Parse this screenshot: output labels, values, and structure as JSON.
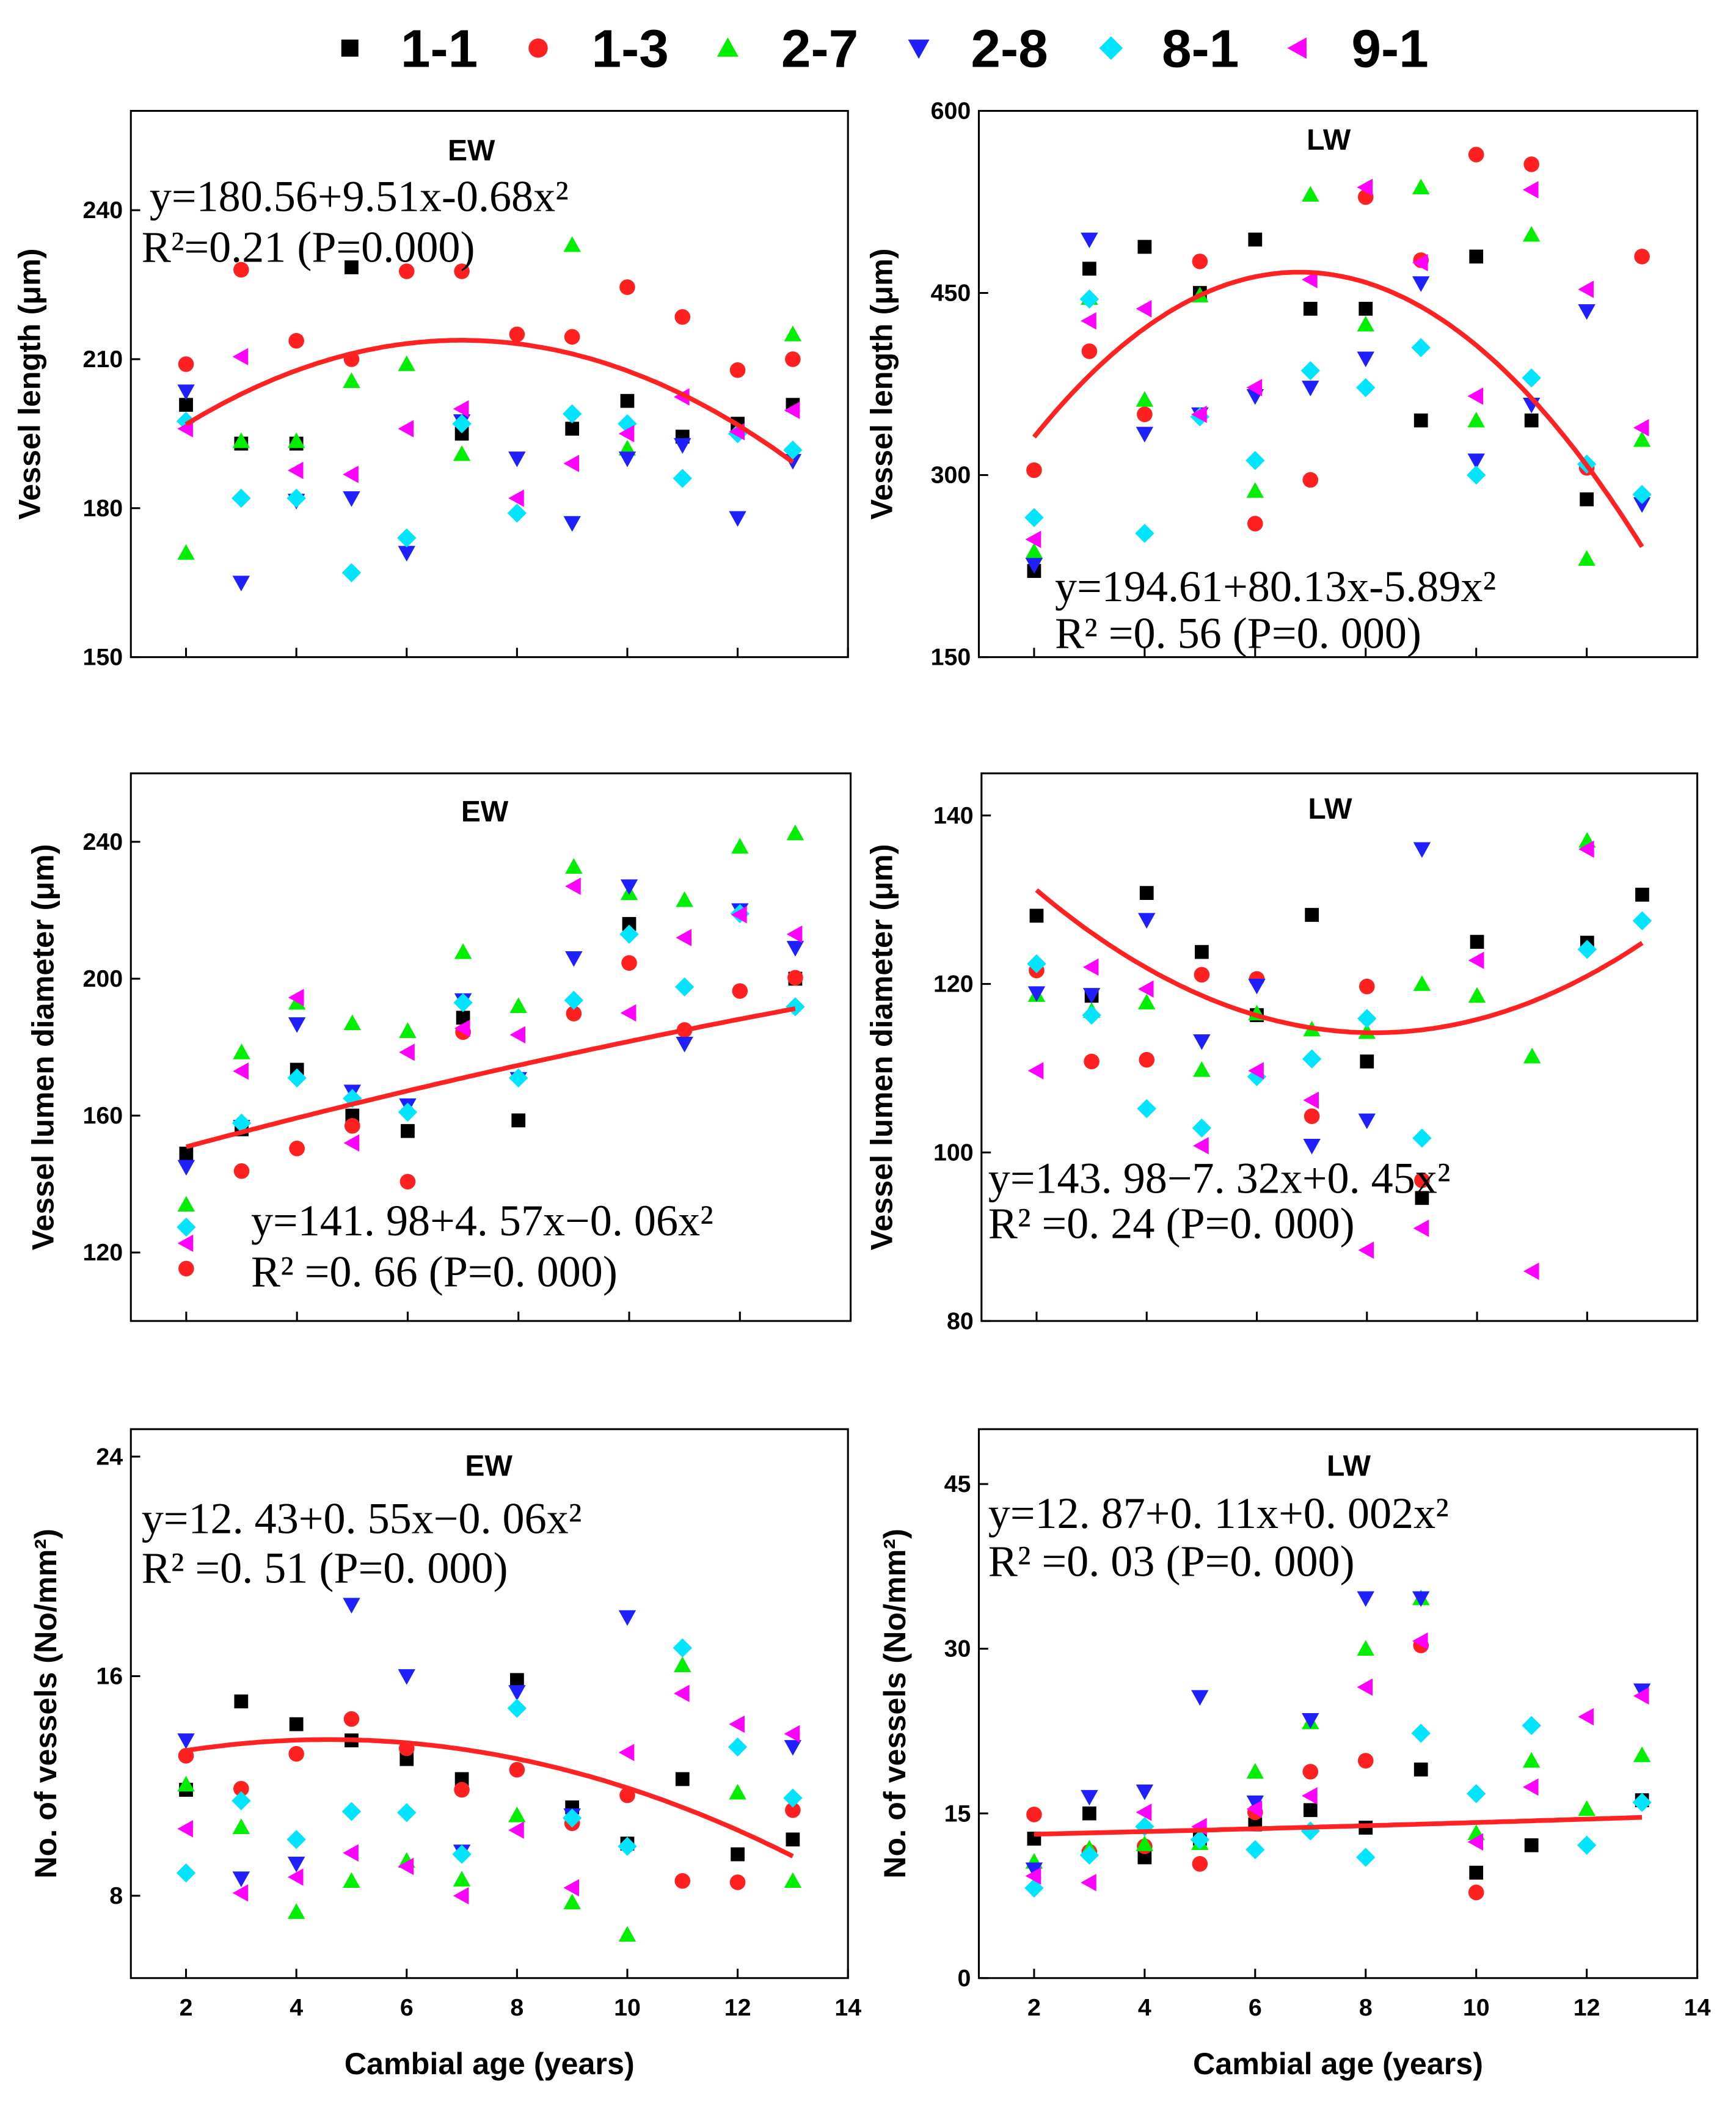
{
  "legend": [
    {
      "label": "1-1",
      "marker": "square",
      "color": "#000000"
    },
    {
      "label": "1-3",
      "marker": "circle",
      "color": "#ff2020"
    },
    {
      "label": "2-7",
      "marker": "triangle-up",
      "color": "#00ee00"
    },
    {
      "label": "2-8",
      "marker": "triangle-down",
      "color": "#2020ff"
    },
    {
      "label": "8-1",
      "marker": "diamond",
      "color": "#00e5ff"
    },
    {
      "label": "9-1",
      "marker": "triangle-left",
      "color": "#ff00ff"
    }
  ],
  "fit_color": "#ff2020",
  "chart_data": [
    {
      "type": "scatter",
      "title": "EW",
      "ylabel": "Vessel length (μm)",
      "xlabel": "",
      "xlim": [
        1,
        14
      ],
      "ylim": [
        150,
        260
      ],
      "yticks": [
        150,
        180,
        210,
        240
      ],
      "xticks": [],
      "equation": "y=180.56+9.51x-0.68x²",
      "r2": "R²=0.21 (P=0.000)",
      "fit": [
        180.56,
        9.51,
        -0.68
      ],
      "x": [
        2,
        3,
        4,
        5,
        6,
        7,
        8,
        9,
        10,
        11,
        12,
        13
      ],
      "series": [
        {
          "name": "1-1",
          "values": [
            200.8,
            193,
            193,
            228.5,
            null,
            195,
            null,
            196,
            201.6,
            194.4,
            197,
            200.8
          ]
        },
        {
          "name": "1-3",
          "values": [
            209,
            228,
            213.7,
            210,
            227.7,
            227.7,
            215,
            214.5,
            224.5,
            218.5,
            207.8,
            210
          ]
        },
        {
          "name": "2-7",
          "values": [
            171,
            193.5,
            193.5,
            205.6,
            209,
            190.9,
            null,
            233,
            192,
            null,
            null,
            215
          ]
        },
        {
          "name": "2-8",
          "values": [
            203.5,
            165,
            181.5,
            182,
            171,
            197.5,
            190,
            177,
            190,
            192.7,
            178,
            189.5
          ]
        },
        {
          "name": "8-1",
          "values": [
            197.5,
            182,
            182,
            167,
            174,
            197,
            179,
            199,
            197,
            186,
            195,
            191.7
          ]
        },
        {
          "name": "9-1",
          "values": [
            196,
            210.5,
            187.6,
            186.8,
            196,
            200,
            182,
            189,
            195,
            202.4,
            195.4,
            199.7
          ]
        }
      ]
    },
    {
      "type": "scatter",
      "title": "LW",
      "ylabel": "Vessel length (μm)",
      "xlabel": "",
      "xlim": [
        1,
        14
      ],
      "ylim": [
        150,
        600
      ],
      "yticks": [
        150,
        300,
        450,
        600
      ],
      "xticks": [],
      "equation": "y=194.61+80.13x-5.89x²",
      "r2": "R² =0. 56 (P=0. 000)",
      "fit": [
        194.61,
        80.13,
        -5.89
      ],
      "x": [
        2,
        3,
        4,
        5,
        6,
        7,
        8,
        9,
        10,
        11,
        12,
        13
      ],
      "series": [
        {
          "name": "1-1",
          "values": [
            221,
            470,
            488,
            450,
            494,
            437,
            437,
            345,
            480,
            345,
            280,
            null
          ]
        },
        {
          "name": "1-3",
          "values": [
            304,
            402,
            350,
            476,
            260,
            296,
            529,
            477,
            564,
            556,
            306,
            480
          ]
        },
        {
          "name": "2-7",
          "values": [
            237,
            446,
            362,
            448,
            287,
            531,
            424,
            537,
            345,
            498,
            231,
            329
          ]
        },
        {
          "name": "2-8",
          "values": [
            226,
            494,
            334,
            350,
            365,
            372,
            396,
            458,
            312,
            358,
            435,
            276
          ]
        },
        {
          "name": "8-1",
          "values": [
            265,
            445,
            252,
            348,
            312,
            386,
            372,
            405,
            300,
            380,
            309,
            284
          ]
        },
        {
          "name": "9-1",
          "values": [
            247,
            427,
            437,
            350,
            372,
            461,
            537,
            475,
            365,
            535,
            453,
            339
          ]
        }
      ]
    },
    {
      "type": "scatter",
      "title": "EW",
      "ylabel": "Vessel lumen diameter (μm)",
      "xlabel": "",
      "xlim": [
        1,
        14
      ],
      "ylim": [
        100,
        260
      ],
      "yticks": [
        120,
        160,
        200,
        240
      ],
      "xticks": [],
      "equation": "y=141. 98+4. 57x−0. 06x²",
      "r2": "R² =0. 66 (P=0. 000)",
      "fit": [
        141.98,
        4.57,
        -0.06
      ],
      "x": [
        2,
        3,
        4,
        5,
        6,
        7,
        8,
        9,
        10,
        11,
        12,
        13
      ],
      "series": [
        {
          "name": "1-1",
          "values": [
            148.9,
            156,
            173.4,
            160,
            155.5,
            188.6,
            158.6,
            null,
            216,
            null,
            null,
            200
          ]
        },
        {
          "name": "1-3",
          "values": [
            115.3,
            143.8,
            150.4,
            157,
            140.7,
            184.4,
            null,
            189.8,
            204.6,
            185,
            196.4,
            200.3
          ]
        },
        {
          "name": "2-7",
          "values": [
            134,
            178.5,
            193,
            187,
            184.7,
            207.8,
            192,
            232.7,
            225,
            223,
            238.6,
            242.5
          ]
        },
        {
          "name": "2-8",
          "values": [
            145,
            156.7,
            186.7,
            167,
            163,
            193.7,
            170.7,
            206,
            227,
            181,
            220,
            209
          ]
        },
        {
          "name": "8-1",
          "values": [
            127.4,
            157.8,
            171,
            165,
            161,
            193,
            171,
            193.7,
            213,
            197.6,
            219,
            191.8
          ]
        },
        {
          "name": "9-1",
          "values": [
            122.7,
            173,
            194.5,
            152,
            178.5,
            185.5,
            183.6,
            227,
            190,
            212,
            218.7,
            213
          ]
        }
      ]
    },
    {
      "type": "scatter",
      "title": "LW",
      "ylabel": "Vessel lumen diameter (μm)",
      "xlabel": "",
      "xlim": [
        1,
        14
      ],
      "ylim": [
        80,
        145
      ],
      "yticks": [
        80,
        100,
        120,
        140
      ],
      "xticks": [],
      "equation": "y=143. 98−7. 32x+0. 45x²",
      "r2": "R² =0. 24 (P=0. 000)",
      "fit": [
        143.98,
        -7.32,
        0.45
      ],
      "x": [
        2,
        3,
        4,
        5,
        6,
        7,
        8,
        9,
        10,
        11,
        12,
        13
      ],
      "series": [
        {
          "name": "1-1",
          "values": [
            128.1,
            118.6,
            130.8,
            123.8,
            116.3,
            128.2,
            110.8,
            94.6,
            125,
            null,
            124.9,
            130.6
          ]
        },
        {
          "name": "1-3",
          "values": [
            121.6,
            110.8,
            111,
            121.1,
            120.6,
            104.3,
            119.7,
            96.7,
            null,
            null,
            null,
            null
          ]
        },
        {
          "name": "2-7",
          "values": [
            118.7,
            116.8,
            117.8,
            109.8,
            116.5,
            114.6,
            114.3,
            120,
            118.6,
            111.4,
            137,
            null
          ]
        },
        {
          "name": "2-8",
          "values": [
            118.9,
            118.7,
            127.6,
            113.2,
            119.8,
            100.8,
            103.8,
            136,
            null,
            null,
            null,
            null
          ]
        },
        {
          "name": "8-1",
          "values": [
            122.4,
            116.3,
            105.2,
            102.9,
            109,
            111.1,
            115.9,
            101.7,
            null,
            null,
            124.1,
            127.5
          ]
        },
        {
          "name": "9-1",
          "values": [
            109.7,
            122,
            119.4,
            100.8,
            109.7,
            106.2,
            88.4,
            91,
            122.8,
            85.9,
            136,
            null
          ]
        }
      ]
    },
    {
      "type": "scatter",
      "title": "EW",
      "ylabel": "No. of vessels (No/mm²)",
      "xlabel": "Cambial age (years)",
      "xlim": [
        1,
        14
      ],
      "ylim": [
        5,
        25
      ],
      "yticks": [
        8,
        16,
        24
      ],
      "xticks": [
        2,
        4,
        6,
        8,
        10,
        12,
        14
      ],
      "equation": "y=12. 43+0. 55x−0. 06x²",
      "r2": "R² =0. 51 (P=0. 000)",
      "fit": [
        12.43,
        0.55,
        -0.06
      ],
      "x": [
        2,
        3,
        4,
        5,
        6,
        7,
        8,
        9,
        10,
        11,
        12,
        13
      ],
      "series": [
        {
          "name": "1-1",
          "values": [
            11.86,
            15.08,
            14.25,
            13.66,
            12.98,
            12.25,
            15.86,
            11.22,
            9.9,
            12.25,
            9.51,
            10.05
          ]
        },
        {
          "name": "1-3",
          "values": [
            13.1,
            11.9,
            13.17,
            14.44,
            13.37,
            11.86,
            12.59,
            10.64,
            11.66,
            8.54,
            8.49,
            11.12
          ]
        },
        {
          "name": "2-7",
          "values": [
            12.05,
            10.5,
            7.41,
            8.54,
            9.27,
            8.59,
            10.93,
            7.76,
            6.58,
            16.4,
            11.76,
            8.54
          ]
        },
        {
          "name": "2-8",
          "values": [
            13.66,
            8.63,
            9.17,
            18.6,
            16,
            9.61,
            15.42,
            10.93,
            18.15,
            null,
            null,
            13.42
          ]
        },
        {
          "name": "8-1",
          "values": [
            8.83,
            11.46,
            10.05,
            11.07,
            11.03,
            9.51,
            14.83,
            10.83,
            9.8,
            17.03,
            13.42,
            11.56
          ]
        },
        {
          "name": "9-1",
          "values": [
            10.44,
            8.1,
            8.68,
            9.56,
            9.07,
            8,
            10.39,
            8.29,
            13.22,
            15.37,
            14.25,
            13.9
          ]
        }
      ]
    },
    {
      "type": "scatter",
      "title": "LW",
      "ylabel": "No. of vessels (No/mm²)",
      "xlabel": "Cambial age (years)",
      "xlim": [
        1,
        14
      ],
      "ylim": [
        0,
        50
      ],
      "yticks": [
        0,
        15,
        30,
        45
      ],
      "xticks": [
        2,
        4,
        6,
        8,
        10,
        12,
        14
      ],
      "equation": "y=12. 87+0. 11x+0. 002x²",
      "r2": "R² =0. 03 (P=0. 000)",
      "fit": [
        12.87,
        0.11,
        0.002
      ],
      "x": [
        2,
        3,
        4,
        5,
        6,
        7,
        8,
        9,
        10,
        11,
        12,
        13
      ],
      "series": [
        {
          "name": "1-1",
          "values": [
            12.7,
            15,
            11,
            12.7,
            14,
            15.3,
            13.7,
            19,
            9.6,
            12.1,
            null,
            16.2
          ]
        },
        {
          "name": "1-3",
          "values": [
            14.9,
            11.5,
            12,
            10.4,
            15.1,
            18.8,
            19.8,
            30.3,
            7.8,
            null,
            null,
            null
          ]
        },
        {
          "name": "2-7",
          "values": [
            10.6,
            11.8,
            12.2,
            12.3,
            18.8,
            23.3,
            30,
            34.6,
            13.2,
            19.8,
            15.4,
            20.3
          ]
        },
        {
          "name": "2-8",
          "values": [
            9.9,
            16.5,
            17,
            25.6,
            16,
            23.5,
            34.6,
            34.6,
            null,
            null,
            null,
            26.2
          ]
        },
        {
          "name": "8-1",
          "values": [
            8.2,
            11.2,
            13.8,
            12.6,
            11.7,
            13.4,
            11,
            22.3,
            16.8,
            23,
            12.1,
            16
          ]
        },
        {
          "name": "9-1",
          "values": [
            9.3,
            8.7,
            15.1,
            13.8,
            15.4,
            16.6,
            26.5,
            30.7,
            12.4,
            17.4,
            23.8,
            25.7
          ]
        }
      ]
    }
  ]
}
